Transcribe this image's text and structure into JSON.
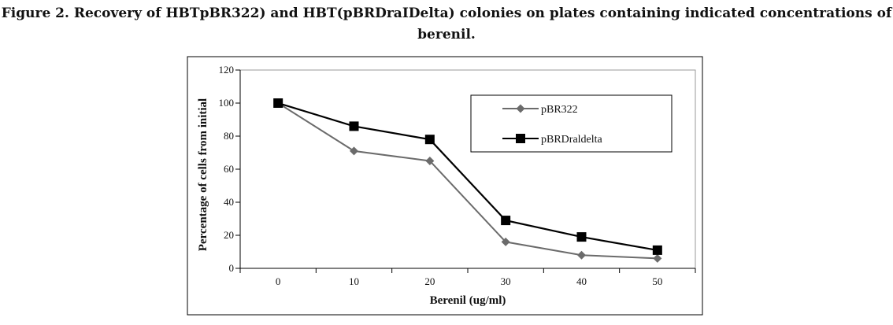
{
  "caption": {
    "line1": "Figure 2. Recovery of HBTpBR322) and HBT(pBRDraIDelta) colonies on plates containing indicated concentrations of",
    "line2": "berenil."
  },
  "chart_data": {
    "type": "line",
    "title": "",
    "xlabel": "Berenil (ug/ml)",
    "ylabel": "Percentage of cells from initial",
    "x": [
      0,
      10,
      20,
      30,
      40,
      50
    ],
    "x_tick_labels": [
      "0",
      "10",
      "20",
      "30",
      "40",
      "50"
    ],
    "y_tick_labels": [
      "0",
      "20",
      "40",
      "60",
      "80",
      "100",
      "120"
    ],
    "ylim": [
      0,
      120
    ],
    "grid": false,
    "legend_position": "top-right",
    "series": [
      {
        "name": "pBR322",
        "values": [
          100,
          71,
          65,
          16,
          8,
          6
        ],
        "color": "#6b6b6b",
        "marker": "diamond"
      },
      {
        "name": "pBRDraldelta",
        "values": [
          100,
          86,
          78,
          29,
          19,
          11
        ],
        "color": "#000000",
        "marker": "square"
      }
    ]
  }
}
